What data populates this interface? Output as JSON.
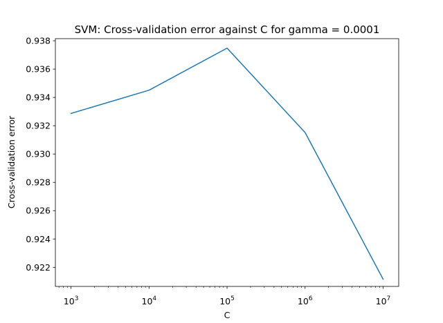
{
  "chart_data": {
    "type": "line",
    "title": "SVM: Cross-validation error against C for gamma = 0.0001",
    "xlabel": "C",
    "ylabel": "Cross-validation error",
    "x_scale": "log",
    "x": [
      1000,
      10000,
      100000,
      1000000,
      10000000
    ],
    "y": [
      0.93287,
      0.93451,
      0.93748,
      0.93152,
      0.92116
    ],
    "xlim": [
      630,
      15850000
    ],
    "ylim": [
      0.92065,
      0.93815
    ],
    "x_ticks": [
      {
        "value": 1000,
        "base": "10",
        "exp": "3"
      },
      {
        "value": 10000,
        "base": "10",
        "exp": "4"
      },
      {
        "value": 100000,
        "base": "10",
        "exp": "5"
      },
      {
        "value": 1000000,
        "base": "10",
        "exp": "6"
      },
      {
        "value": 10000000,
        "base": "10",
        "exp": "7"
      }
    ],
    "y_ticks": [
      {
        "value": 0.922,
        "label": "0.922"
      },
      {
        "value": 0.924,
        "label": "0.924"
      },
      {
        "value": 0.926,
        "label": "0.926"
      },
      {
        "value": 0.928,
        "label": "0.928"
      },
      {
        "value": 0.93,
        "label": "0.930"
      },
      {
        "value": 0.932,
        "label": "0.932"
      },
      {
        "value": 0.934,
        "label": "0.934"
      },
      {
        "value": 0.936,
        "label": "0.936"
      },
      {
        "value": 0.938,
        "label": "0.938"
      }
    ],
    "grid": false,
    "line_color": "#1f77b4"
  }
}
